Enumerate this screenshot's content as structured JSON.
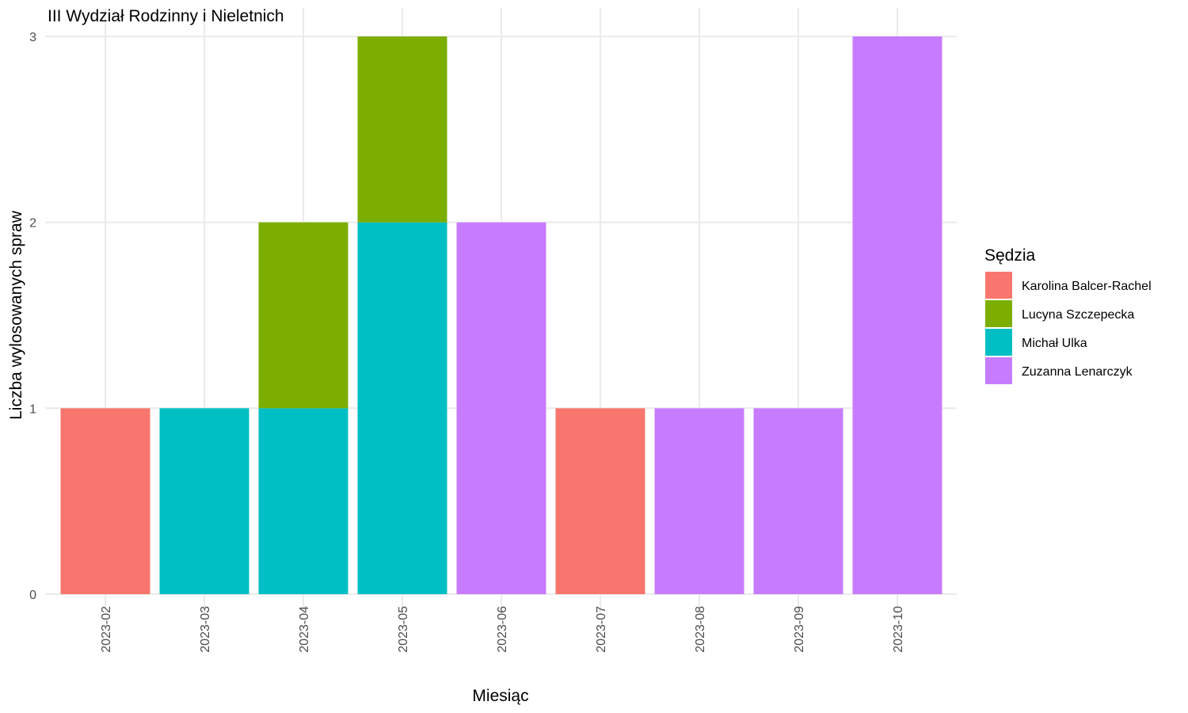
{
  "chart_data": {
    "type": "bar",
    "stacked": true,
    "title": "III Wydział Rodzinny i Nieletnich",
    "xlabel": "Miesiąc",
    "ylabel": "Liczba wylosowanych spraw",
    "ylim": [
      0,
      3
    ],
    "yticks": [
      0,
      1,
      2,
      3
    ],
    "grid": true,
    "legend_position": "right",
    "legend_title": "Sędzia",
    "categories": [
      "2023-02",
      "2023-03",
      "2023-04",
      "2023-05",
      "2023-06",
      "2023-07",
      "2023-08",
      "2023-09",
      "2023-10"
    ],
    "series": [
      {
        "name": "Karolina Balcer-Rachel",
        "color": "#F8766D",
        "values": [
          1,
          0,
          0,
          0,
          0,
          1,
          0,
          0,
          0
        ]
      },
      {
        "name": "Lucyna Szczepecka",
        "color": "#7CAE00",
        "values": [
          0,
          0,
          1,
          1,
          0,
          0,
          0,
          0,
          0
        ]
      },
      {
        "name": "Michał Ulka",
        "color": "#00BFC4",
        "values": [
          0,
          1,
          1,
          2,
          0,
          0,
          0,
          0,
          0
        ]
      },
      {
        "name": "Zuzanna Lenarczyk",
        "color": "#C77CFF",
        "values": [
          0,
          0,
          0,
          0,
          2,
          0,
          1,
          1,
          3
        ]
      }
    ]
  }
}
